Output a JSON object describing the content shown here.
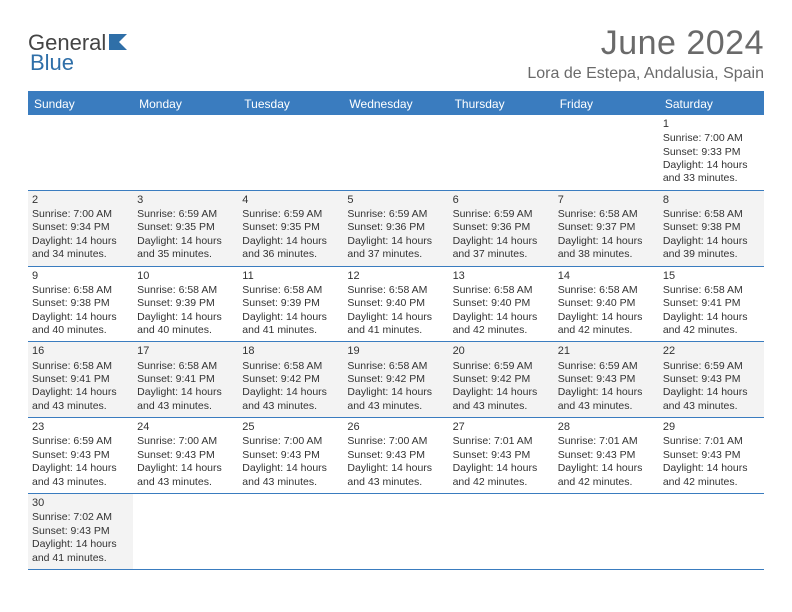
{
  "logo": {
    "brand_a": "General",
    "brand_b": "Blue"
  },
  "title": "June 2024",
  "location": "Lora de Estepa, Andalusia, Spain",
  "colors": {
    "header_bg": "#3a7cbf",
    "header_text": "#ffffff",
    "border": "#3a7cbf",
    "shaded_cell": "#f3f3f3",
    "text": "#333333",
    "title_text": "#6a6a6a"
  },
  "day_names": [
    "Sunday",
    "Monday",
    "Tuesday",
    "Wednesday",
    "Thursday",
    "Friday",
    "Saturday"
  ],
  "weeks": [
    [
      {
        "day": "",
        "sunrise": "",
        "sunset": "",
        "daylight": "",
        "shaded": false
      },
      {
        "day": "",
        "sunrise": "",
        "sunset": "",
        "daylight": "",
        "shaded": false
      },
      {
        "day": "",
        "sunrise": "",
        "sunset": "",
        "daylight": "",
        "shaded": false
      },
      {
        "day": "",
        "sunrise": "",
        "sunset": "",
        "daylight": "",
        "shaded": false
      },
      {
        "day": "",
        "sunrise": "",
        "sunset": "",
        "daylight": "",
        "shaded": false
      },
      {
        "day": "",
        "sunrise": "",
        "sunset": "",
        "daylight": "",
        "shaded": false
      },
      {
        "day": "1",
        "sunrise": "Sunrise: 7:00 AM",
        "sunset": "Sunset: 9:33 PM",
        "daylight": "Daylight: 14 hours and 33 minutes.",
        "shaded": false
      }
    ],
    [
      {
        "day": "2",
        "sunrise": "Sunrise: 7:00 AM",
        "sunset": "Sunset: 9:34 PM",
        "daylight": "Daylight: 14 hours and 34 minutes.",
        "shaded": true
      },
      {
        "day": "3",
        "sunrise": "Sunrise: 6:59 AM",
        "sunset": "Sunset: 9:35 PM",
        "daylight": "Daylight: 14 hours and 35 minutes.",
        "shaded": true
      },
      {
        "day": "4",
        "sunrise": "Sunrise: 6:59 AM",
        "sunset": "Sunset: 9:35 PM",
        "daylight": "Daylight: 14 hours and 36 minutes.",
        "shaded": true
      },
      {
        "day": "5",
        "sunrise": "Sunrise: 6:59 AM",
        "sunset": "Sunset: 9:36 PM",
        "daylight": "Daylight: 14 hours and 37 minutes.",
        "shaded": true
      },
      {
        "day": "6",
        "sunrise": "Sunrise: 6:59 AM",
        "sunset": "Sunset: 9:36 PM",
        "daylight": "Daylight: 14 hours and 37 minutes.",
        "shaded": true
      },
      {
        "day": "7",
        "sunrise": "Sunrise: 6:58 AM",
        "sunset": "Sunset: 9:37 PM",
        "daylight": "Daylight: 14 hours and 38 minutes.",
        "shaded": true
      },
      {
        "day": "8",
        "sunrise": "Sunrise: 6:58 AM",
        "sunset": "Sunset: 9:38 PM",
        "daylight": "Daylight: 14 hours and 39 minutes.",
        "shaded": true
      }
    ],
    [
      {
        "day": "9",
        "sunrise": "Sunrise: 6:58 AM",
        "sunset": "Sunset: 9:38 PM",
        "daylight": "Daylight: 14 hours and 40 minutes.",
        "shaded": false
      },
      {
        "day": "10",
        "sunrise": "Sunrise: 6:58 AM",
        "sunset": "Sunset: 9:39 PM",
        "daylight": "Daylight: 14 hours and 40 minutes.",
        "shaded": false
      },
      {
        "day": "11",
        "sunrise": "Sunrise: 6:58 AM",
        "sunset": "Sunset: 9:39 PM",
        "daylight": "Daylight: 14 hours and 41 minutes.",
        "shaded": false
      },
      {
        "day": "12",
        "sunrise": "Sunrise: 6:58 AM",
        "sunset": "Sunset: 9:40 PM",
        "daylight": "Daylight: 14 hours and 41 minutes.",
        "shaded": false
      },
      {
        "day": "13",
        "sunrise": "Sunrise: 6:58 AM",
        "sunset": "Sunset: 9:40 PM",
        "daylight": "Daylight: 14 hours and 42 minutes.",
        "shaded": false
      },
      {
        "day": "14",
        "sunrise": "Sunrise: 6:58 AM",
        "sunset": "Sunset: 9:40 PM",
        "daylight": "Daylight: 14 hours and 42 minutes.",
        "shaded": false
      },
      {
        "day": "15",
        "sunrise": "Sunrise: 6:58 AM",
        "sunset": "Sunset: 9:41 PM",
        "daylight": "Daylight: 14 hours and 42 minutes.",
        "shaded": false
      }
    ],
    [
      {
        "day": "16",
        "sunrise": "Sunrise: 6:58 AM",
        "sunset": "Sunset: 9:41 PM",
        "daylight": "Daylight: 14 hours and 43 minutes.",
        "shaded": true
      },
      {
        "day": "17",
        "sunrise": "Sunrise: 6:58 AM",
        "sunset": "Sunset: 9:41 PM",
        "daylight": "Daylight: 14 hours and 43 minutes.",
        "shaded": true
      },
      {
        "day": "18",
        "sunrise": "Sunrise: 6:58 AM",
        "sunset": "Sunset: 9:42 PM",
        "daylight": "Daylight: 14 hours and 43 minutes.",
        "shaded": true
      },
      {
        "day": "19",
        "sunrise": "Sunrise: 6:58 AM",
        "sunset": "Sunset: 9:42 PM",
        "daylight": "Daylight: 14 hours and 43 minutes.",
        "shaded": true
      },
      {
        "day": "20",
        "sunrise": "Sunrise: 6:59 AM",
        "sunset": "Sunset: 9:42 PM",
        "daylight": "Daylight: 14 hours and 43 minutes.",
        "shaded": true
      },
      {
        "day": "21",
        "sunrise": "Sunrise: 6:59 AM",
        "sunset": "Sunset: 9:43 PM",
        "daylight": "Daylight: 14 hours and 43 minutes.",
        "shaded": true
      },
      {
        "day": "22",
        "sunrise": "Sunrise: 6:59 AM",
        "sunset": "Sunset: 9:43 PM",
        "daylight": "Daylight: 14 hours and 43 minutes.",
        "shaded": true
      }
    ],
    [
      {
        "day": "23",
        "sunrise": "Sunrise: 6:59 AM",
        "sunset": "Sunset: 9:43 PM",
        "daylight": "Daylight: 14 hours and 43 minutes.",
        "shaded": false
      },
      {
        "day": "24",
        "sunrise": "Sunrise: 7:00 AM",
        "sunset": "Sunset: 9:43 PM",
        "daylight": "Daylight: 14 hours and 43 minutes.",
        "shaded": false
      },
      {
        "day": "25",
        "sunrise": "Sunrise: 7:00 AM",
        "sunset": "Sunset: 9:43 PM",
        "daylight": "Daylight: 14 hours and 43 minutes.",
        "shaded": false
      },
      {
        "day": "26",
        "sunrise": "Sunrise: 7:00 AM",
        "sunset": "Sunset: 9:43 PM",
        "daylight": "Daylight: 14 hours and 43 minutes.",
        "shaded": false
      },
      {
        "day": "27",
        "sunrise": "Sunrise: 7:01 AM",
        "sunset": "Sunset: 9:43 PM",
        "daylight": "Daylight: 14 hours and 42 minutes.",
        "shaded": false
      },
      {
        "day": "28",
        "sunrise": "Sunrise: 7:01 AM",
        "sunset": "Sunset: 9:43 PM",
        "daylight": "Daylight: 14 hours and 42 minutes.",
        "shaded": false
      },
      {
        "day": "29",
        "sunrise": "Sunrise: 7:01 AM",
        "sunset": "Sunset: 9:43 PM",
        "daylight": "Daylight: 14 hours and 42 minutes.",
        "shaded": false
      }
    ],
    [
      {
        "day": "30",
        "sunrise": "Sunrise: 7:02 AM",
        "sunset": "Sunset: 9:43 PM",
        "daylight": "Daylight: 14 hours and 41 minutes.",
        "shaded": true
      },
      {
        "day": "",
        "sunrise": "",
        "sunset": "",
        "daylight": "",
        "shaded": false
      },
      {
        "day": "",
        "sunrise": "",
        "sunset": "",
        "daylight": "",
        "shaded": false
      },
      {
        "day": "",
        "sunrise": "",
        "sunset": "",
        "daylight": "",
        "shaded": false
      },
      {
        "day": "",
        "sunrise": "",
        "sunset": "",
        "daylight": "",
        "shaded": false
      },
      {
        "day": "",
        "sunrise": "",
        "sunset": "",
        "daylight": "",
        "shaded": false
      },
      {
        "day": "",
        "sunrise": "",
        "sunset": "",
        "daylight": "",
        "shaded": false
      }
    ]
  ]
}
